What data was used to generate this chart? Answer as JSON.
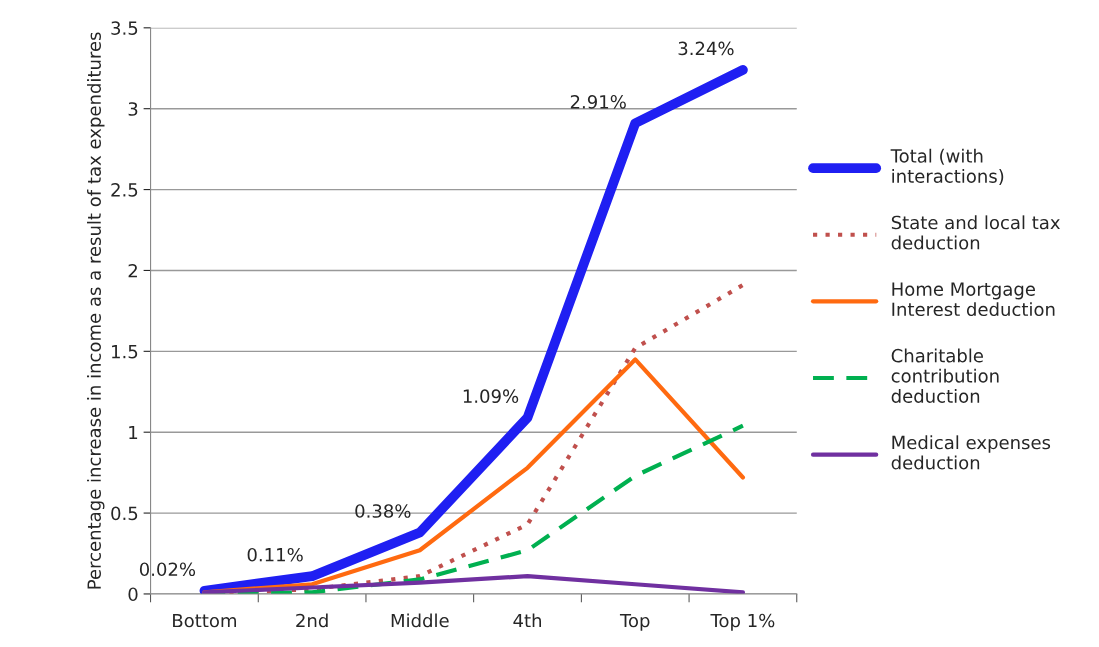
{
  "chart_data": {
    "type": "line",
    "ylabel": "Percentage increase in income as a result of tax expenditures",
    "categories": [
      "Bottom",
      "2nd",
      "Middle",
      "4th",
      "Top",
      "Top 1%"
    ],
    "ylim": [
      0,
      3.5
    ],
    "yticks": [
      0,
      0.5,
      1,
      1.5,
      2,
      2.5,
      3,
      3.5
    ],
    "grid": "y",
    "legend": "right",
    "marker": "none",
    "series": [
      {
        "name": "Total (with\ninteractions)",
        "color": "#1f1ff2",
        "line_style": "solid",
        "values": [
          0.02,
          0.11,
          0.38,
          1.09,
          2.91,
          3.24
        ],
        "value_labels": [
          "0.02%",
          "0.11%",
          "0.38%",
          "1.09%",
          "2.91%",
          "3.24%"
        ]
      },
      {
        "name": "State and local tax\ndeduction",
        "color": "#c0504d",
        "line_style": "dotted",
        "values": [
          0.0,
          0.03,
          0.11,
          0.43,
          1.52,
          1.91
        ]
      },
      {
        "name": "Home Mortgage\nInterest deduction",
        "color": "#ff6a10",
        "line_style": "solid",
        "values": [
          0.01,
          0.06,
          0.27,
          0.78,
          1.45,
          0.72
        ]
      },
      {
        "name": "Charitable\ncontribution\ndeduction",
        "color": "#00b050",
        "line_style": "dashed",
        "values": [
          0.0,
          0.01,
          0.09,
          0.27,
          0.73,
          1.04
        ]
      },
      {
        "name": "Medical expenses\ndeduction",
        "color": "#7030a0",
        "line_style": "solid",
        "values": [
          0.01,
          0.04,
          0.07,
          0.11,
          0.06,
          0.01
        ]
      }
    ]
  }
}
